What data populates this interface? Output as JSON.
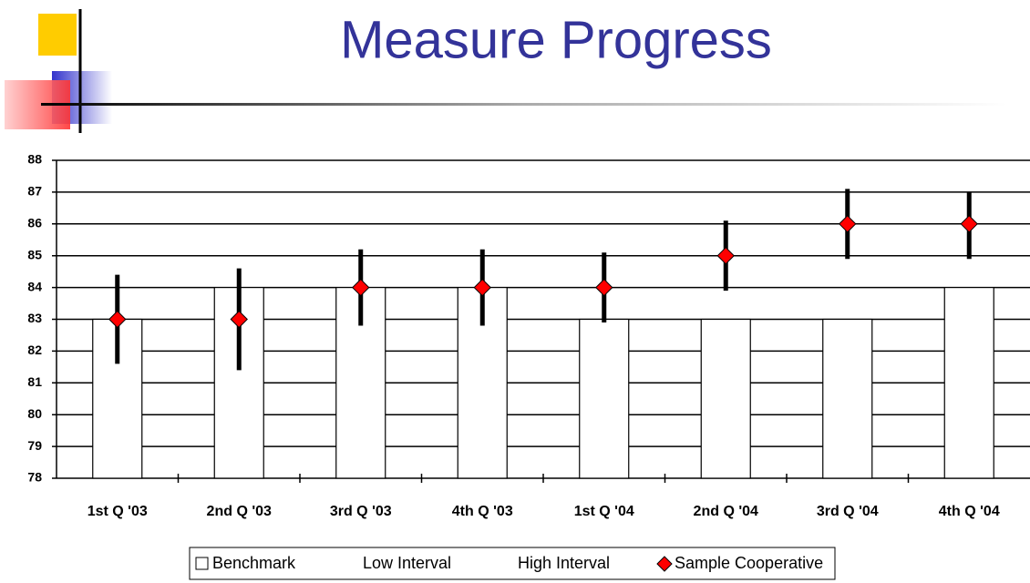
{
  "chart_data": {
    "type": "bar_errorbar",
    "title": "Measure Progress",
    "categories": [
      "1st  Q '03",
      "2nd Q '03",
      "3rd Q '03",
      "4th Q '03",
      "1st  Q '04",
      "2nd Q '04",
      "3rd Q '04",
      "4th Q '04"
    ],
    "series": [
      {
        "name": "Benchmark",
        "color": "#ffffff",
        "values": [
          83,
          84,
          84,
          84,
          83,
          83,
          83,
          84
        ]
      },
      {
        "name": "Low Interval",
        "color": "#000000",
        "values": [
          81.6,
          81.4,
          82.8,
          82.8,
          82.9,
          83.9,
          84.9,
          84.9
        ]
      },
      {
        "name": "High Interval",
        "color": "#000000",
        "values": [
          84.4,
          84.6,
          85.2,
          85.2,
          85.1,
          86.1,
          87.1,
          87.0
        ]
      },
      {
        "name": "Sample Cooperative",
        "color": "#ff0000",
        "values": [
          83,
          83,
          84,
          84,
          84,
          85,
          86,
          86
        ]
      }
    ],
    "ylim": [
      78,
      88
    ],
    "yticks": [
      78,
      79,
      80,
      81,
      82,
      83,
      84,
      85,
      86,
      87,
      88
    ],
    "grid": true
  }
}
